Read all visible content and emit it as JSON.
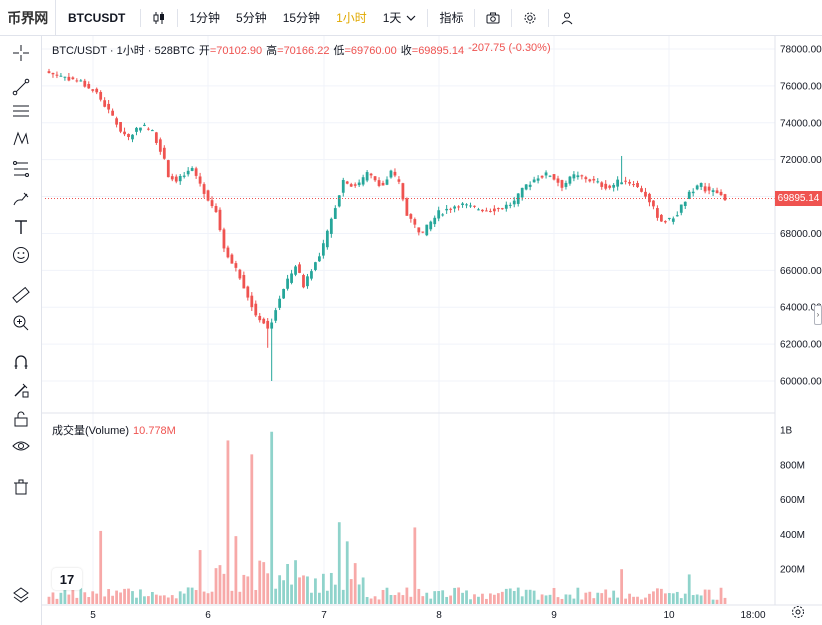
{
  "topbar": {
    "logo": "币界网",
    "symbol": "BTCUSDT",
    "intervals": [
      "1分钟",
      "5分钟",
      "15分钟",
      "1小时",
      "1天"
    ],
    "active_interval": "1小时",
    "indicators": "指标"
  },
  "legend": {
    "title": "BTC/USDT · 1小时 · 528BTC",
    "open_label": "开",
    "open": "=70102.90",
    "high_label": "高",
    "high": "=70166.22",
    "low_label": "低",
    "low": "=69760.00",
    "close_label": "收",
    "close": "=69895.14",
    "change": "-207.75 (-0.30%)"
  },
  "volume_legend": {
    "label": "成交量(Volume)",
    "value": "10.778M"
  },
  "price_tag": "69895.14",
  "tv_logo": "17",
  "colors": {
    "up": "#26a69a",
    "down": "#ef5350",
    "vol_up": "#8fd3cb",
    "vol_down": "#f7a9a8",
    "grid": "#f0f3fa",
    "active": "#e0a800"
  },
  "chart_data": [
    {
      "type": "candlestick",
      "symbol": "BTC/USDT",
      "interval": "1h",
      "ylim": [
        59000,
        79000
      ],
      "y_ticks": [
        60000,
        62000,
        64000,
        66000,
        68000,
        70000,
        72000,
        74000,
        76000,
        78000
      ],
      "y_tick_labels": [
        "60000.00",
        "62000.00",
        "64000.00",
        "66000.00",
        "68000.00",
        "70000.00",
        "72000.00",
        "74000.00",
        "76000.00",
        "78000.00"
      ],
      "x_tick_labels": [
        "5",
        "6",
        "7",
        "8",
        "9",
        "10",
        "18:00"
      ],
      "last_price": 69895.14,
      "close_path": [
        [
          0,
          76700
        ],
        [
          4,
          76500
        ],
        [
          8,
          76200
        ],
        [
          12,
          75600
        ],
        [
          16,
          74300
        ],
        [
          18,
          73600
        ],
        [
          20,
          73200
        ],
        [
          23,
          73900
        ],
        [
          26,
          73500
        ],
        [
          28,
          72600
        ],
        [
          30,
          71200
        ],
        [
          32,
          70800
        ],
        [
          36,
          71500
        ],
        [
          38,
          70700
        ],
        [
          40,
          69900
        ],
        [
          42,
          69200
        ],
        [
          44,
          67300
        ],
        [
          46,
          66400
        ],
        [
          48,
          65700
        ],
        [
          50,
          64600
        ],
        [
          52,
          63600
        ],
        [
          54,
          63200
        ],
        [
          55,
          62800
        ],
        [
          56,
          63300
        ],
        [
          58,
          64500
        ],
        [
          60,
          65400
        ],
        [
          62,
          66300
        ],
        [
          64,
          65200
        ],
        [
          66,
          66100
        ],
        [
          68,
          66700
        ],
        [
          70,
          68000
        ],
        [
          72,
          69500
        ],
        [
          74,
          70900
        ],
        [
          76,
          70600
        ],
        [
          78,
          70700
        ],
        [
          80,
          71200
        ],
        [
          82,
          70900
        ],
        [
          84,
          70600
        ],
        [
          86,
          71300
        ],
        [
          88,
          70700
        ],
        [
          90,
          69100
        ],
        [
          92,
          68400
        ],
        [
          94,
          68000
        ],
        [
          96,
          68600
        ],
        [
          98,
          69100
        ],
        [
          100,
          69300
        ],
        [
          103,
          69600
        ],
        [
          106,
          69400
        ],
        [
          110,
          69300
        ],
        [
          114,
          69400
        ],
        [
          117,
          69700
        ],
        [
          120,
          70600
        ],
        [
          123,
          71100
        ],
        [
          126,
          71200
        ],
        [
          129,
          70600
        ],
        [
          132,
          71100
        ],
        [
          135,
          71000
        ],
        [
          138,
          70700
        ],
        [
          141,
          70500
        ],
        [
          144,
          70900
        ],
        [
          147,
          70700
        ],
        [
          150,
          70100
        ],
        [
          152,
          69300
        ],
        [
          154,
          68700
        ],
        [
          156,
          68700
        ],
        [
          158,
          69100
        ],
        [
          160,
          69800
        ],
        [
          162,
          70400
        ],
        [
          164,
          70600
        ],
        [
          166,
          70300
        ],
        [
          168,
          70200
        ],
        [
          170,
          69900
        ]
      ]
    },
    {
      "type": "bar",
      "name": "成交量(Volume)",
      "ylim": [
        0,
        1000000000
      ],
      "y_tick_labels": [
        "200M",
        "400M",
        "600M",
        "800M",
        "1B"
      ],
      "y_ticks": [
        200000000,
        400000000,
        600000000,
        800000000,
        1000000000
      ],
      "spikes": [
        {
          "index": 13,
          "value": 420000000,
          "dir": "down"
        },
        {
          "index": 38,
          "value": 310000000,
          "dir": "down"
        },
        {
          "index": 45,
          "value": 940000000,
          "dir": "down"
        },
        {
          "index": 47,
          "value": 390000000,
          "dir": "down"
        },
        {
          "index": 51,
          "value": 860000000,
          "dir": "down"
        },
        {
          "index": 56,
          "value": 990000000,
          "dir": "up"
        },
        {
          "index": 73,
          "value": 470000000,
          "dir": "up"
        },
        {
          "index": 75,
          "value": 360000000,
          "dir": "up"
        },
        {
          "index": 92,
          "value": 440000000,
          "dir": "down"
        },
        {
          "index": 144,
          "value": 200000000,
          "dir": "down"
        },
        {
          "index": 161,
          "value": 170000000,
          "dir": "up"
        }
      ]
    }
  ]
}
